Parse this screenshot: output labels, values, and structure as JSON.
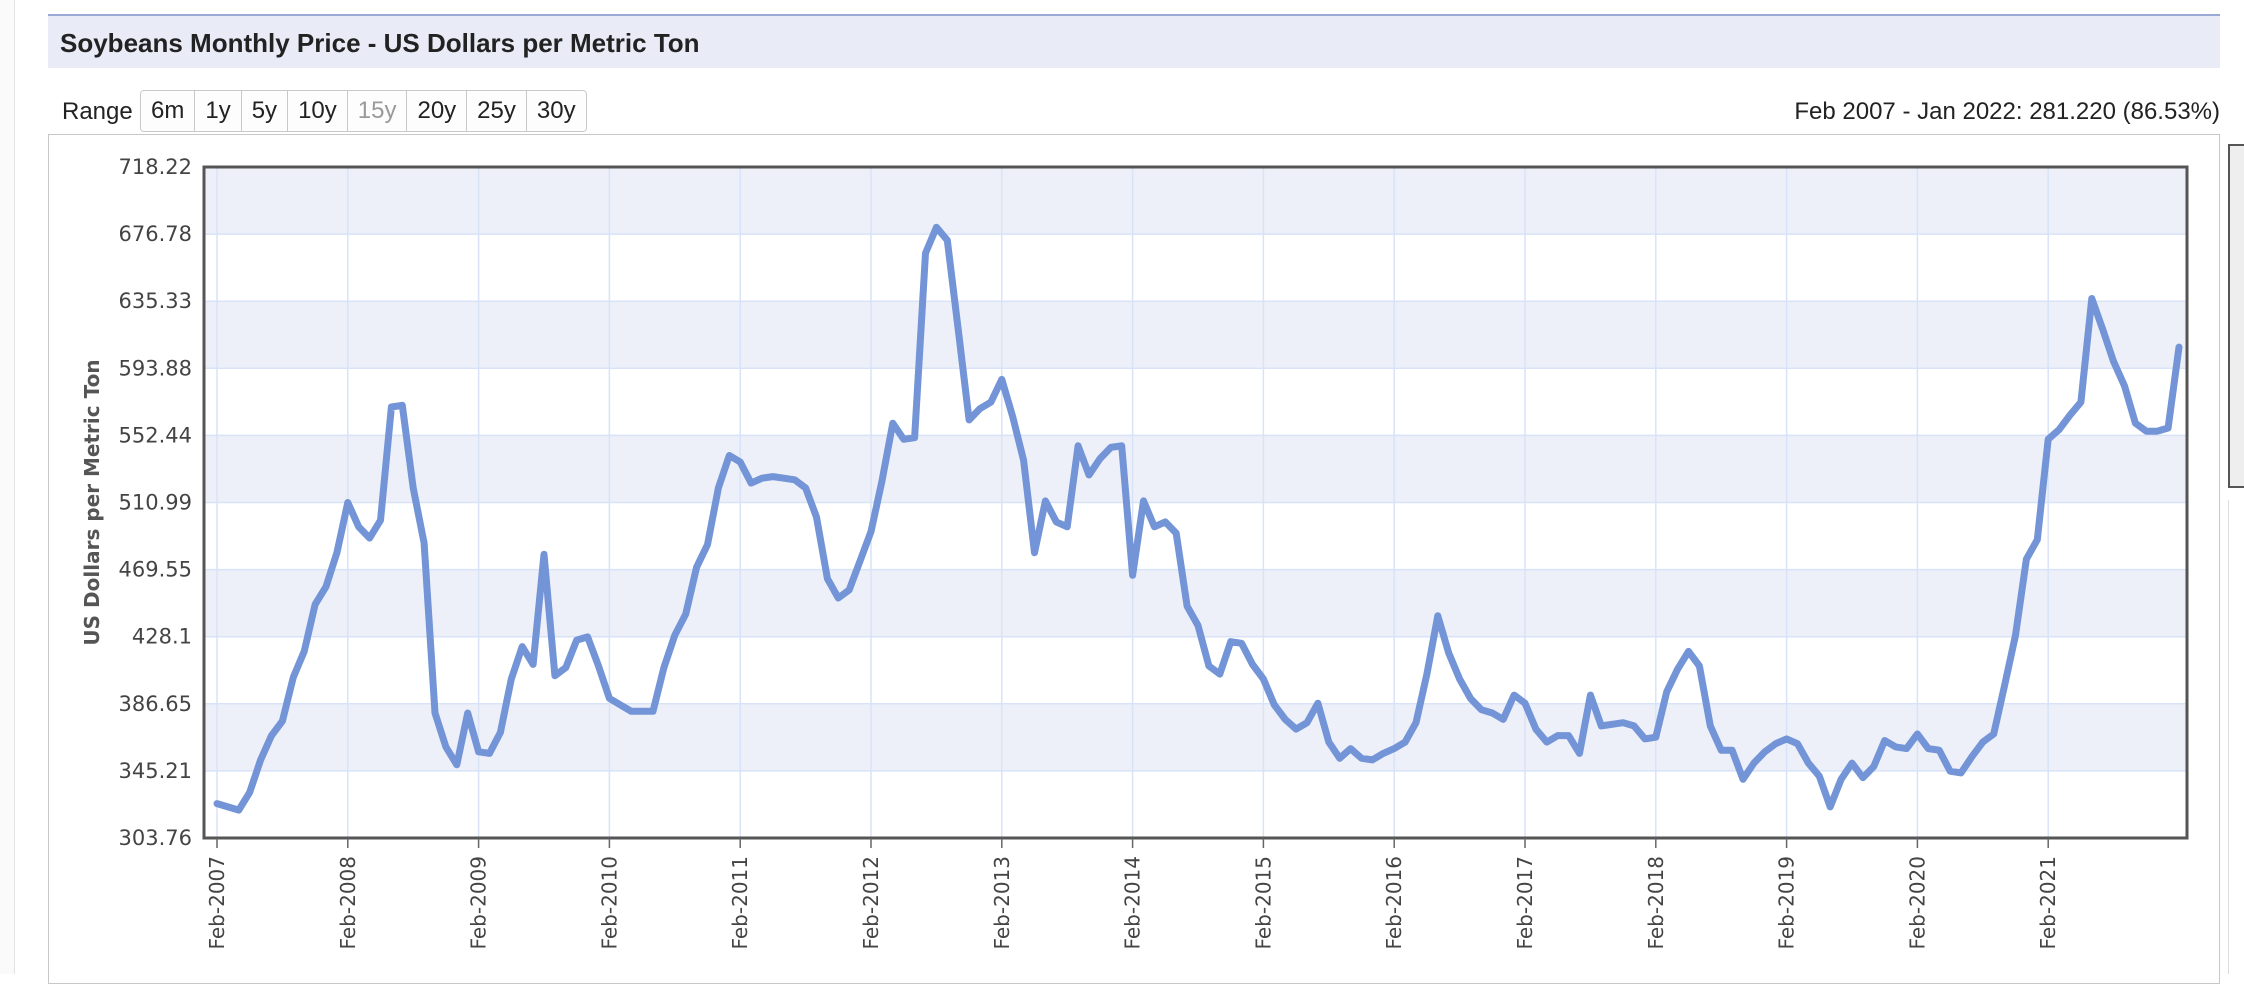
{
  "title": "Soybeans Monthly Price - US Dollars per Metric Ton",
  "range": {
    "label": "Range",
    "buttons": [
      {
        "label": "6m",
        "enabled": true
      },
      {
        "label": "1y",
        "enabled": true
      },
      {
        "label": "5y",
        "enabled": true
      },
      {
        "label": "10y",
        "enabled": true
      },
      {
        "label": "15y",
        "enabled": false
      },
      {
        "label": "20y",
        "enabled": true
      },
      {
        "label": "25y",
        "enabled": true
      },
      {
        "label": "30y",
        "enabled": true
      }
    ],
    "summary": "Feb 2007 - Jan 2022: 281.220 (86.53%)"
  },
  "colors": {
    "line": "#7394d6",
    "band": "#eef0f9",
    "grid": "#d8e3f8"
  },
  "chart_data": {
    "type": "line",
    "ylabel": "US Dollars per Metric Ton",
    "ylim": [
      303.76,
      718.22
    ],
    "yticks": [
      "718.22",
      "676.78",
      "635.33",
      "593.88",
      "552.44",
      "510.99",
      "469.55",
      "428.1",
      "386.65",
      "345.21",
      "303.76"
    ],
    "xticks": [
      "Feb-2007",
      "Feb-2008",
      "Feb-2009",
      "Feb-2010",
      "Feb-2011",
      "Feb-2012",
      "Feb-2013",
      "Feb-2014",
      "Feb-2015",
      "Feb-2016",
      "Feb-2017",
      "Feb-2018",
      "Feb-2019",
      "Feb-2020",
      "Feb-2021"
    ],
    "start": "Feb-2007",
    "series": [
      {
        "values": [
          325,
          323,
          321,
          332,
          352,
          367,
          376,
          403,
          419,
          448,
          459,
          480,
          511,
          496,
          489,
          500,
          570,
          571,
          520,
          486,
          381,
          360,
          349,
          381,
          357,
          356,
          369,
          402,
          422,
          411,
          479,
          404,
          409,
          426,
          428,
          410,
          390,
          386,
          382,
          382,
          382,
          409,
          429,
          442,
          471,
          485,
          520,
          540,
          536,
          523,
          526,
          527,
          526,
          525,
          520,
          502,
          464,
          452,
          457,
          475,
          493,
          524,
          560,
          550,
          551,
          665,
          681,
          673,
          618,
          562,
          569,
          573,
          587,
          564,
          537,
          480,
          512,
          499,
          496,
          546,
          528,
          538,
          545,
          546,
          466,
          512,
          496,
          499,
          492,
          447,
          435,
          410,
          405,
          425,
          424,
          411,
          402,
          386,
          377,
          371,
          375,
          387,
          363,
          353,
          359,
          353,
          352,
          356,
          359,
          363,
          375,
          405,
          441,
          418,
          402,
          390,
          383,
          381,
          377,
          392,
          387,
          371,
          363,
          367,
          367,
          356,
          392,
          373,
          374,
          375,
          373,
          365,
          366,
          394,
          408,
          419,
          410,
          373,
          358,
          358,
          340,
          350,
          357,
          362,
          365,
          362,
          350,
          342,
          323,
          340,
          350,
          341,
          348,
          364,
          360,
          359,
          368,
          359,
          358,
          345,
          344,
          354,
          363,
          368,
          398,
          429,
          476,
          488,
          550,
          556,
          565,
          573,
          637,
          618,
          598,
          583,
          560,
          555,
          555,
          557,
          607
        ]
      }
    ]
  }
}
